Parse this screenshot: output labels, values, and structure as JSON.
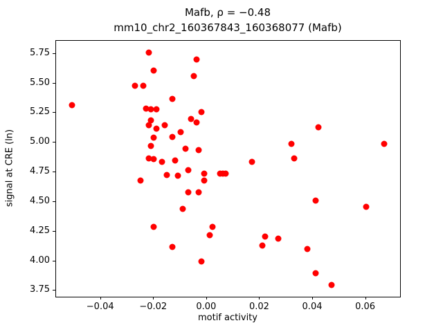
{
  "figure": {
    "title_line1": "Mafb, ρ = −0.48",
    "title_line2": "mm10_chr2_160367843_160368077 (Mafb)"
  },
  "chart_data": {
    "type": "scatter",
    "title": "Mafb, ρ = −0.48",
    "subtitle": "mm10_chr2_160367843_160368077 (Mafb)",
    "xlabel": "motif activity",
    "ylabel": "signal at CRE (ln)",
    "xlim": [
      -0.0569,
      0.0729
    ],
    "ylim": [
      3.7,
      5.86
    ],
    "xticks": [
      -0.04,
      -0.02,
      0.0,
      0.02,
      0.04,
      0.06
    ],
    "xtick_labels": [
      "−0.04",
      "−0.02",
      "0.00",
      "0.02",
      "0.04",
      "0.06"
    ],
    "yticks": [
      3.75,
      4.0,
      4.25,
      4.5,
      4.75,
      5.0,
      5.25,
      5.5,
      5.75
    ],
    "ytick_labels": [
      "3.75",
      "4.00",
      "4.25",
      "4.50",
      "4.75",
      "5.00",
      "5.25",
      "5.50",
      "5.75"
    ],
    "grid": false,
    "legend": "none",
    "marker_color": "#ff0000",
    "marker_size_px": 9,
    "points": [
      [
        -0.051,
        5.32
      ],
      [
        -0.027,
        5.48
      ],
      [
        -0.024,
        5.48
      ],
      [
        -0.022,
        5.76
      ],
      [
        -0.02,
        5.61
      ],
      [
        -0.023,
        5.29
      ],
      [
        -0.021,
        5.28
      ],
      [
        -0.019,
        5.28
      ],
      [
        -0.021,
        5.19
      ],
      [
        -0.022,
        5.15
      ],
      [
        -0.019,
        5.12
      ],
      [
        -0.016,
        5.15
      ],
      [
        -0.02,
        5.04
      ],
      [
        -0.021,
        4.97
      ],
      [
        -0.022,
        4.87
      ],
      [
        -0.02,
        4.86
      ],
      [
        -0.025,
        4.68
      ],
      [
        -0.017,
        4.84
      ],
      [
        -0.015,
        4.73
      ],
      [
        -0.013,
        5.37
      ],
      [
        -0.013,
        5.05
      ],
      [
        -0.01,
        5.09
      ],
      [
        -0.012,
        4.85
      ],
      [
        -0.011,
        4.72
      ],
      [
        -0.02,
        4.29
      ],
      [
        -0.013,
        4.12
      ],
      [
        -0.008,
        4.95
      ],
      [
        -0.006,
        5.2
      ],
      [
        -0.005,
        5.56
      ],
      [
        -0.004,
        5.7
      ],
      [
        -0.004,
        5.17
      ],
      [
        -0.002,
        5.26
      ],
      [
        -0.003,
        4.94
      ],
      [
        -0.007,
        4.77
      ],
      [
        -0.007,
        4.58
      ],
      [
        -0.003,
        4.58
      ],
      [
        -0.001,
        4.74
      ],
      [
        -0.001,
        4.68
      ],
      [
        -0.009,
        4.44
      ],
      [
        -0.002,
        4.0
      ],
      [
        0.001,
        4.22
      ],
      [
        0.002,
        4.29
      ],
      [
        0.005,
        4.74
      ],
      [
        0.006,
        4.74
      ],
      [
        0.007,
        4.74
      ],
      [
        0.017,
        4.84
      ],
      [
        0.022,
        4.21
      ],
      [
        0.021,
        4.13
      ],
      [
        0.027,
        4.19
      ],
      [
        0.032,
        4.99
      ],
      [
        0.033,
        4.87
      ],
      [
        0.042,
        5.13
      ],
      [
        0.038,
        4.1
      ],
      [
        0.041,
        4.51
      ],
      [
        0.041,
        3.9
      ],
      [
        0.047,
        3.8
      ],
      [
        0.06,
        4.46
      ],
      [
        0.067,
        4.99
      ]
    ]
  }
}
